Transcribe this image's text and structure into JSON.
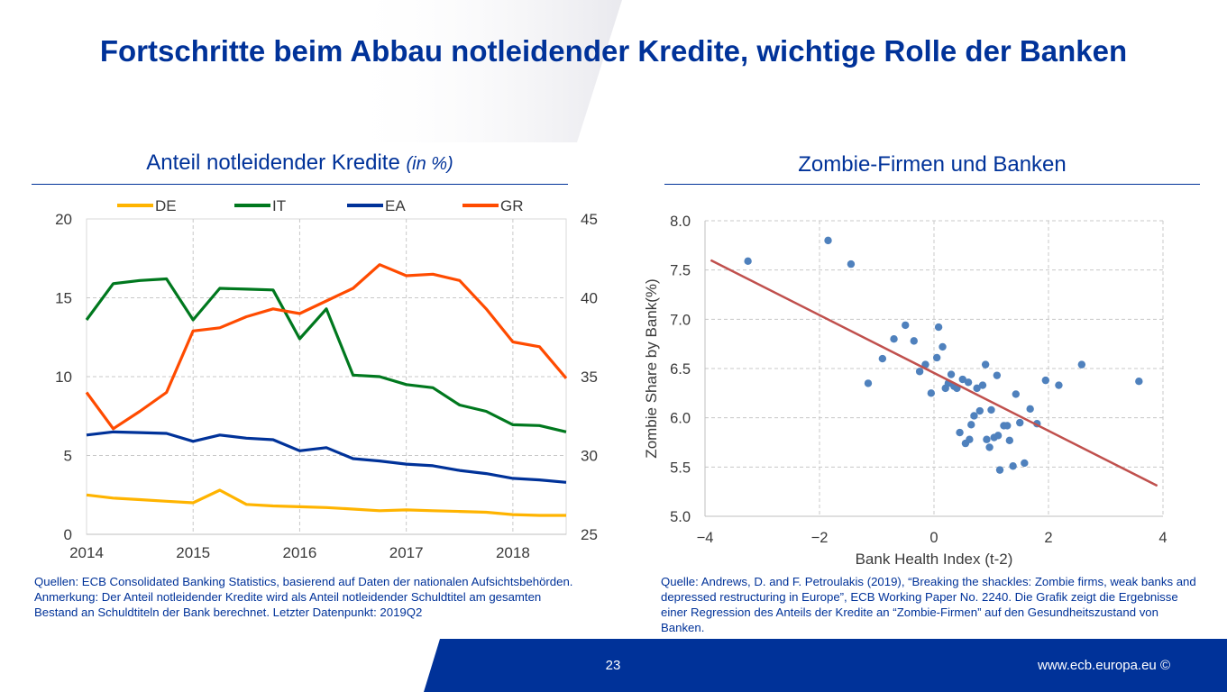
{
  "slide_title": "Fortschritte beim Abbau notleidender Kredite, wichtige Rolle der Banken",
  "left_panel": {
    "title": "Anteil notleidender Kredite",
    "title_unit": "(in %)",
    "source": "Quellen: ECB Consolidated Banking Statistics, basierend auf Daten der nationalen Aufsichtsbehörden. Anmerkung: Der Anteil notleidender Kredite wird als Anteil notleidender Schuldtitel am gesamten Bestand an Schuldtiteln der Bank berechnet. Letzter Datenpunkt: 2019Q2"
  },
  "right_panel": {
    "title": "Zombie-Firmen und Banken",
    "source": "Quelle: Andrews, D. and F. Petroulakis (2019), “Breaking the shackles: Zombie firms, weak banks and depressed restructuring in Europe”, ECB Working Paper No. 2240. Die Grafik zeigt die Ergebnisse einer Regression des Anteils der Kredite an “Zombie-Firmen” auf den Gesundheitszustand von Banken."
  },
  "footer": {
    "page_number": "23",
    "url": "www.ecb.europa.eu ©",
    "color": "#003299"
  },
  "chart_data": [
    {
      "type": "line",
      "x": [
        2014.0,
        2014.25,
        2014.5,
        2014.75,
        2015.0,
        2015.25,
        2015.5,
        2015.75,
        2016.0,
        2016.25,
        2016.5,
        2016.75,
        2017.0,
        2017.25,
        2017.5,
        2017.75,
        2018.0,
        2018.25,
        2018.5
      ],
      "xlim": [
        2014.0,
        2018.5
      ],
      "x_ticks": [
        "2014",
        "2015",
        "2016",
        "2017",
        "2018"
      ],
      "x_tick_values": [
        2014,
        2015,
        2016,
        2017,
        2018
      ],
      "ylim": [
        0,
        20
      ],
      "y_ticks": [
        "0",
        "5",
        "10",
        "15",
        "20"
      ],
      "y2lim": [
        25,
        45
      ],
      "y2_ticks": [
        "25",
        "30",
        "35",
        "40",
        "45"
      ],
      "grid": true,
      "legend_position": "top",
      "series": [
        {
          "name": "DE",
          "color": "#FFB400",
          "axis": "left",
          "values": [
            2.5,
            2.3,
            2.2,
            2.1,
            2.0,
            2.8,
            1.9,
            1.8,
            1.75,
            1.7,
            1.6,
            1.5,
            1.55,
            1.5,
            1.45,
            1.4,
            1.25,
            1.2,
            1.2
          ]
        },
        {
          "name": "IT",
          "color": "#00781E",
          "axis": "left",
          "values": [
            13.6,
            15.9,
            16.1,
            16.2,
            13.6,
            15.6,
            15.55,
            15.5,
            12.4,
            14.3,
            10.1,
            10.0,
            9.5,
            9.3,
            8.2,
            7.8,
            6.95,
            6.9,
            6.5
          ]
        },
        {
          "name": "EA",
          "color": "#003299",
          "axis": "left",
          "values": [
            6.3,
            6.5,
            6.45,
            6.4,
            5.9,
            6.3,
            6.1,
            6.0,
            5.3,
            5.5,
            4.8,
            4.65,
            4.45,
            4.35,
            4.05,
            3.85,
            3.55,
            3.45,
            3.3
          ]
        },
        {
          "name": "GR",
          "color": "#FF4B00",
          "axis": "right",
          "values": [
            34.0,
            31.7,
            32.8,
            34.0,
            37.9,
            38.1,
            38.8,
            39.3,
            39.0,
            39.8,
            40.6,
            42.1,
            41.4,
            41.5,
            41.1,
            39.3,
            37.2,
            36.9,
            34.9
          ]
        }
      ]
    },
    {
      "type": "scatter",
      "xlabel": "Bank Health Index (t-2)",
      "ylabel": "Zombie Share by Bank(%)",
      "xlim": [
        -4,
        4
      ],
      "ylim": [
        5.0,
        8.0
      ],
      "x_ticks": [
        "−4",
        "−2",
        "0",
        "2",
        "4"
      ],
      "x_tick_values": [
        -4,
        -2,
        0,
        2,
        4
      ],
      "y_ticks": [
        "5.0",
        "5.5",
        "6.0",
        "6.5",
        "7.0",
        "7.5",
        "8.0"
      ],
      "y_tick_values": [
        5.0,
        5.5,
        6.0,
        6.5,
        7.0,
        7.5,
        8.0
      ],
      "grid": true,
      "point_color": "#4F81BD",
      "fit_line_color": "#C0504D",
      "fit_line": {
        "x": [
          -3.9,
          3.9
        ],
        "y": [
          7.6,
          5.31
        ]
      },
      "points": [
        [
          -3.25,
          7.59
        ],
        [
          -1.85,
          7.8
        ],
        [
          -1.45,
          7.56
        ],
        [
          -1.15,
          6.35
        ],
        [
          -0.9,
          6.6
        ],
        [
          -0.7,
          6.8
        ],
        [
          -0.5,
          6.94
        ],
        [
          -0.35,
          6.78
        ],
        [
          -0.25,
          6.47
        ],
        [
          -0.15,
          6.54
        ],
        [
          -0.05,
          6.25
        ],
        [
          0.05,
          6.61
        ],
        [
          0.08,
          6.92
        ],
        [
          0.15,
          6.72
        ],
        [
          0.2,
          6.3
        ],
        [
          0.25,
          6.35
        ],
        [
          0.3,
          6.44
        ],
        [
          0.35,
          6.32
        ],
        [
          0.4,
          6.3
        ],
        [
          0.45,
          5.85
        ],
        [
          0.5,
          6.39
        ],
        [
          0.55,
          5.74
        ],
        [
          0.6,
          6.36
        ],
        [
          0.62,
          5.78
        ],
        [
          0.65,
          5.93
        ],
        [
          0.7,
          6.02
        ],
        [
          0.75,
          6.3
        ],
        [
          0.8,
          6.07
        ],
        [
          0.85,
          6.33
        ],
        [
          0.9,
          6.54
        ],
        [
          0.92,
          5.78
        ],
        [
          0.97,
          5.7
        ],
        [
          1.0,
          6.08
        ],
        [
          1.05,
          5.8
        ],
        [
          1.1,
          6.43
        ],
        [
          1.12,
          5.82
        ],
        [
          1.15,
          5.47
        ],
        [
          1.22,
          5.92
        ],
        [
          1.28,
          5.92
        ],
        [
          1.32,
          5.77
        ],
        [
          1.38,
          5.51
        ],
        [
          1.43,
          6.24
        ],
        [
          1.5,
          5.95
        ],
        [
          1.58,
          5.54
        ],
        [
          1.68,
          6.09
        ],
        [
          1.8,
          5.94
        ],
        [
          1.95,
          6.38
        ],
        [
          2.18,
          6.33
        ],
        [
          2.58,
          6.54
        ],
        [
          3.58,
          6.37
        ]
      ]
    }
  ]
}
